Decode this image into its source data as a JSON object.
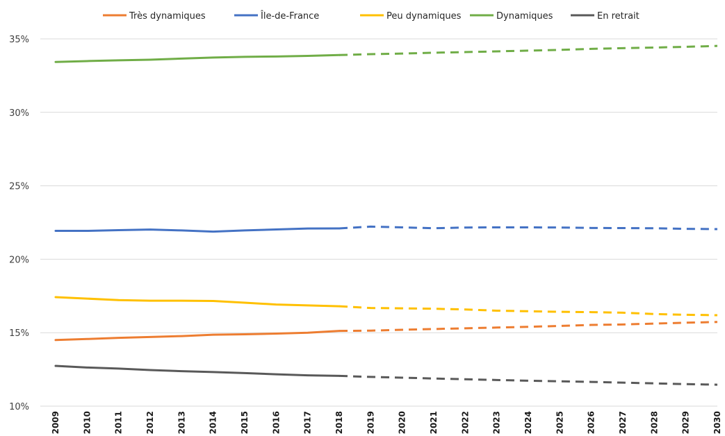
{
  "chart_data": {
    "type": "line",
    "title": "",
    "xlabel": "",
    "ylabel": "",
    "x": [
      "2009",
      "2010",
      "2011",
      "2012",
      "2013",
      "2014",
      "2015",
      "2016",
      "2017",
      "2018",
      "2019",
      "2020",
      "2021",
      "2022",
      "2023",
      "2024",
      "2025",
      "2026",
      "2027",
      "2028",
      "2029",
      "2030"
    ],
    "projection_start": "2018",
    "ylim": [
      10,
      35
    ],
    "yticks": [
      10,
      15,
      20,
      25,
      30,
      35
    ],
    "ytick_labels": [
      "10%",
      "15%",
      "20%",
      "25%",
      "30%",
      "35%"
    ],
    "grid": true,
    "legend_position": "top",
    "series": [
      {
        "name": "Très dynamiques",
        "color": "#ed7d31",
        "values": [
          14.5,
          14.57,
          14.65,
          14.71,
          14.77,
          14.86,
          14.89,
          14.94,
          15.0,
          15.12,
          15.14,
          15.2,
          15.25,
          15.3,
          15.35,
          15.4,
          15.46,
          15.53,
          15.56,
          15.62,
          15.68,
          15.73
        ]
      },
      {
        "name": "Île-de-France",
        "color": "#4472c4",
        "values": [
          21.93,
          21.93,
          21.98,
          22.02,
          21.96,
          21.88,
          21.96,
          22.03,
          22.09,
          22.1,
          22.22,
          22.17,
          22.11,
          22.16,
          22.17,
          22.17,
          22.16,
          22.13,
          22.12,
          22.11,
          22.07,
          22.05
        ]
      },
      {
        "name": "Peu dynamiques",
        "color": "#ffc000",
        "values": [
          17.42,
          17.32,
          17.22,
          17.18,
          17.18,
          17.16,
          17.04,
          16.92,
          16.86,
          16.8,
          16.68,
          16.66,
          16.63,
          16.58,
          16.5,
          16.46,
          16.42,
          16.4,
          16.36,
          16.27,
          16.22,
          16.19
        ]
      },
      {
        "name": "Dynamiques",
        "color": "#70ad47",
        "values": [
          33.43,
          33.49,
          33.54,
          33.58,
          33.66,
          33.73,
          33.78,
          33.8,
          33.84,
          33.9,
          33.96,
          34.0,
          34.06,
          34.1,
          34.15,
          34.2,
          34.25,
          34.32,
          34.37,
          34.41,
          34.46,
          34.52
        ]
      },
      {
        "name": "En retrait",
        "color": "#595959",
        "values": [
          12.74,
          12.63,
          12.56,
          12.46,
          12.38,
          12.32,
          12.25,
          12.17,
          12.1,
          12.06,
          11.99,
          11.94,
          11.88,
          11.83,
          11.78,
          11.73,
          11.69,
          11.65,
          11.6,
          11.55,
          11.5,
          11.46
        ]
      }
    ]
  }
}
